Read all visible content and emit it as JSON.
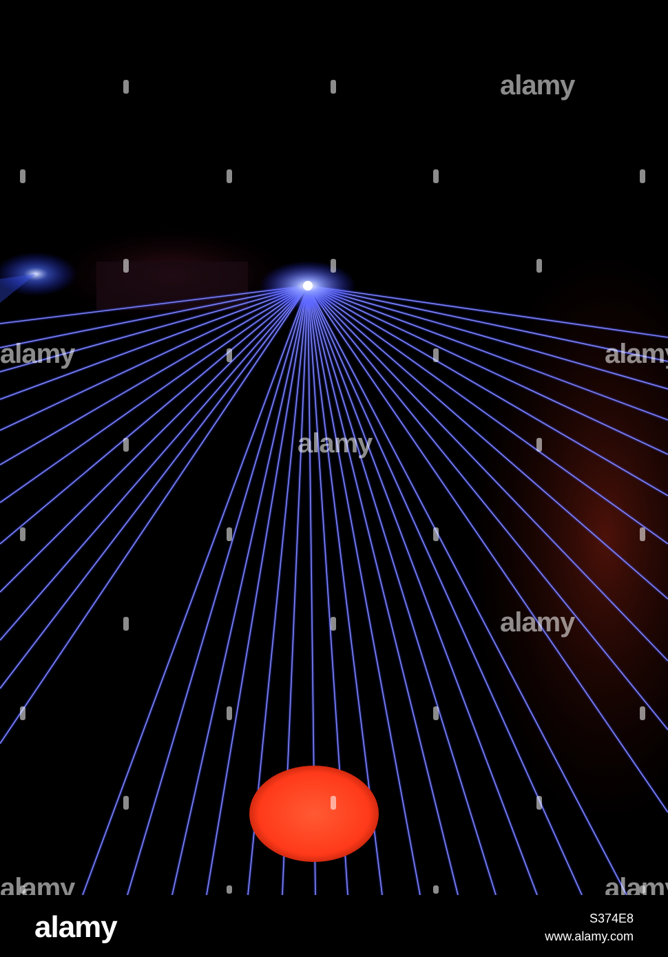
{
  "photo": {
    "subject": "",
    "colors": {
      "background": "#000000",
      "laser": "#3f4dff",
      "laser_glow": "#7f86ff",
      "red_spot": "#ff3a1a",
      "red_haze": "#7a1a10"
    }
  },
  "watermark": {
    "text": "alamy"
  },
  "footer": {
    "logo": "alamy",
    "image_id": "S374E8",
    "url": "www.alamy.com"
  }
}
